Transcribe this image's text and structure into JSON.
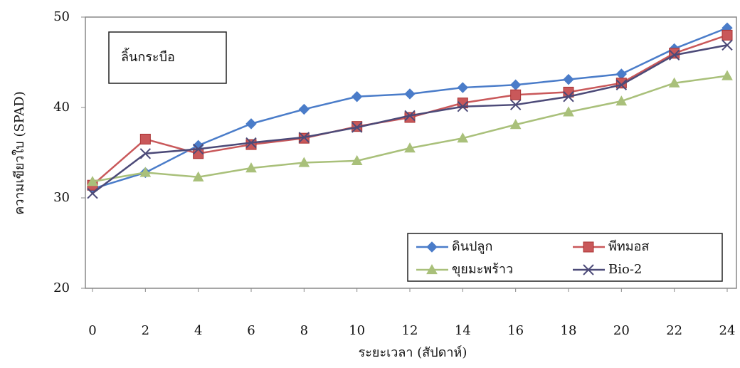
{
  "chart_data": {
    "type": "line",
    "ylabel": "ความเขียวใบ (SPAD)",
    "xlabel": "ระยะเวลา (สัปดาห์)",
    "annotation": "ลิ้นกระบือ",
    "x": [
      0,
      2,
      4,
      6,
      8,
      10,
      12,
      14,
      16,
      18,
      20,
      22,
      24
    ],
    "xlim": [
      0,
      24
    ],
    "xticks": [
      0,
      2,
      4,
      6,
      8,
      10,
      12,
      14,
      16,
      18,
      20,
      22,
      24
    ],
    "ylim": [
      20,
      50
    ],
    "yticks": [
      20,
      30,
      40,
      50
    ],
    "grid": false,
    "legend": "lower right",
    "series": [
      {
        "name": "ดินปลูก",
        "color": "#4a7cc9",
        "marker": "diamond",
        "values": [
          31.0,
          32.8,
          35.8,
          38.2,
          39.8,
          41.2,
          41.5,
          42.2,
          42.5,
          43.1,
          43.7,
          46.5,
          48.8
        ]
      },
      {
        "name": "พีทมอส",
        "color": "#c9585a",
        "marker": "square",
        "values": [
          31.4,
          36.5,
          34.9,
          35.9,
          36.6,
          37.9,
          38.9,
          40.5,
          41.4,
          41.7,
          42.7,
          46.0,
          48.0
        ]
      },
      {
        "name": "ขุยมะพร้าว",
        "color": "#a9c07a",
        "marker": "triangle",
        "values": [
          31.8,
          32.8,
          32.3,
          33.3,
          33.9,
          34.1,
          35.5,
          36.6,
          38.1,
          39.5,
          40.7,
          42.7,
          43.5
        ]
      },
      {
        "name": "Bio-2",
        "color": "#4c4a78",
        "marker": "x",
        "values": [
          30.5,
          34.9,
          35.4,
          36.1,
          36.7,
          37.8,
          39.1,
          40.1,
          40.3,
          41.2,
          42.5,
          45.8,
          46.9
        ]
      }
    ]
  }
}
